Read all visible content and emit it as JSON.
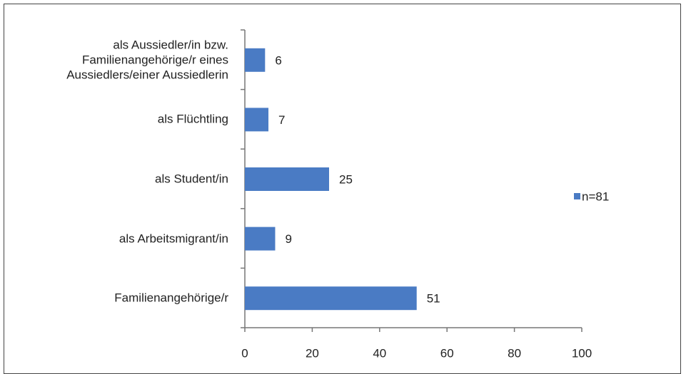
{
  "chart_data": {
    "type": "bar",
    "orientation": "horizontal",
    "categories": [
      "als Aussiedler/in bzw. Familienangehörige/r eines Aussiedlers/einer Aussiedlerin",
      "als Flüchtling",
      "als Student/in",
      "als Arbeitsmigrant/in",
      "Familienangehörige/r"
    ],
    "series": [
      {
        "name": "n=81",
        "color": "#4a7bc4",
        "values": [
          6,
          7,
          25,
          9,
          51
        ]
      }
    ],
    "xlim": [
      0,
      100
    ],
    "xticks": [
      0,
      20,
      40,
      60,
      80,
      100
    ],
    "grid": false,
    "legend": "right"
  }
}
